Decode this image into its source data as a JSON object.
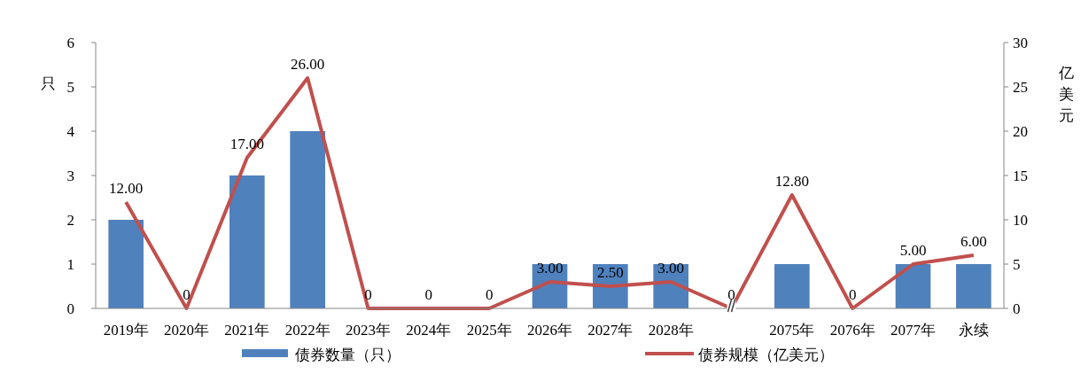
{
  "chart_data": {
    "type": "bar",
    "categories": [
      "2019年",
      "2020年",
      "2021年",
      "2022年",
      "2023年",
      "2024年",
      "2025年",
      "2026年",
      "2027年",
      "2028年",
      null,
      "2075年",
      "2076年",
      "2077年",
      "永续"
    ],
    "series": [
      {
        "name": "债券数量（只）",
        "color": "#4f81bd",
        "values": [
          2,
          0,
          3,
          4,
          0,
          0,
          0,
          1,
          1,
          1,
          0,
          1,
          0,
          1,
          1
        ]
      },
      {
        "name": "债券规模（亿美元）",
        "type": "line",
        "axis": "y2",
        "color": "#c0504d",
        "values": [
          12,
          0,
          17,
          26,
          0,
          0,
          0,
          3,
          2.5,
          3,
          0,
          12.8,
          0,
          5,
          6
        ],
        "value_labels": [
          "12.00",
          "0",
          "17.00",
          "26.00",
          "0",
          "0",
          "0",
          "3.00",
          "2.50",
          "3.00",
          "0",
          "12.80",
          "0",
          "5.00",
          "6.00"
        ]
      }
    ],
    "ylabel": "只",
    "y2label": "亿美元",
    "ylim": [
      0,
      6
    ],
    "yticks": [
      0,
      1,
      2,
      3,
      4,
      5,
      6
    ],
    "y2lim": [
      0,
      30
    ],
    "y2ticks": [
      0,
      5,
      10,
      15,
      20,
      25,
      30
    ],
    "grid": false,
    "legend": "bottom"
  }
}
